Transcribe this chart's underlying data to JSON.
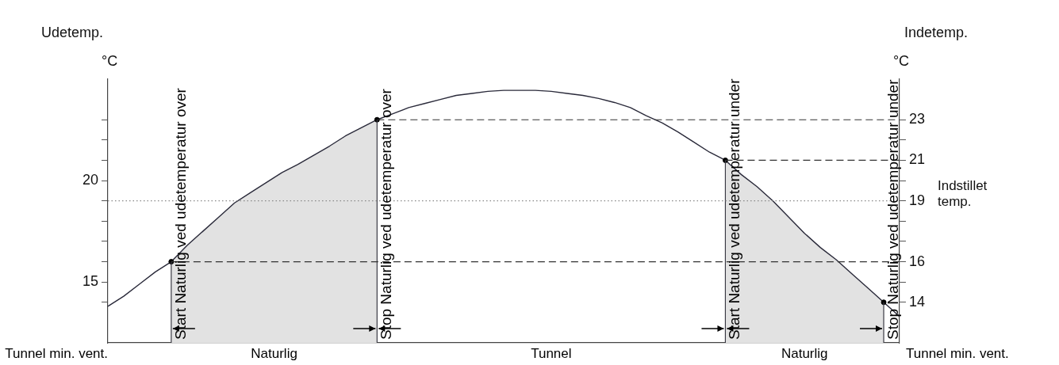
{
  "chart_data": {
    "type": "line",
    "ylabel": "Udetemp.\n°C",
    "y2label": "Indetemp.\n°C",
    "categories": [
      null,
      null,
      null,
      null,
      null,
      null,
      null,
      null,
      null,
      null,
      null,
      null,
      null,
      null,
      null,
      null,
      null,
      null,
      null,
      null,
      null,
      null,
      null,
      null,
      null,
      null,
      null,
      null,
      null,
      null,
      null,
      null,
      null,
      null,
      null,
      null,
      null,
      null,
      null,
      null,
      null,
      null,
      null,
      null,
      null,
      null,
      null,
      null,
      null,
      null,
      null
    ],
    "series": [
      {
        "type": "area",
        "color": "#e2e2e2",
        "values": [
          null,
          null,
          null,
          null,
          16.0,
          16.8,
          17.5,
          18.2,
          18.9,
          19.4,
          19.9,
          20.4,
          20.8,
          21.25,
          21.7,
          22.2,
          22.6,
          23.0,
          null,
          null,
          null,
          null,
          null,
          null,
          null,
          null,
          null,
          null,
          null,
          null,
          null,
          null,
          null,
          null,
          null,
          null,
          null,
          null,
          null,
          null,
          null,
          null,
          null,
          null,
          null,
          null,
          null,
          null,
          null,
          null,
          null
        ]
      },
      {
        "type": "area",
        "color": "#e2e2e2",
        "values": [
          null,
          null,
          null,
          null,
          null,
          null,
          null,
          null,
          null,
          null,
          null,
          null,
          null,
          null,
          null,
          null,
          null,
          null,
          null,
          null,
          null,
          null,
          null,
          null,
          null,
          null,
          null,
          null,
          null,
          null,
          null,
          null,
          null,
          null,
          null,
          null,
          null,
          null,
          null,
          21.0,
          20.3,
          19.7,
          19.0,
          18.2,
          17.4,
          16.7,
          16.1,
          15.4,
          14.7,
          14.0,
          null
        ]
      },
      {
        "type": "line",
        "color": "#2a2a3a",
        "values": [
          13.8,
          14.3,
          14.9,
          15.5,
          16.0,
          16.8,
          17.5,
          18.2,
          18.9,
          19.4,
          19.9,
          20.4,
          20.8,
          21.25,
          21.7,
          22.2,
          22.6,
          23.0,
          23.3,
          23.6,
          23.8,
          24.0,
          24.2,
          24.3,
          24.4,
          24.45,
          24.45,
          24.45,
          24.4,
          24.3,
          24.2,
          24.05,
          23.85,
          23.6,
          23.2,
          22.85,
          22.4,
          21.9,
          21.4,
          21.0,
          20.3,
          19.7,
          19.0,
          18.2,
          17.4,
          16.7,
          16.1,
          15.4,
          14.7,
          14.0,
          13.3
        ]
      },
      {
        "type": "scatter",
        "color": "#000000",
        "marker": "circle",
        "values": [
          null,
          null,
          null,
          null,
          16.0,
          null,
          null,
          null,
          null,
          null,
          null,
          null,
          null,
          null,
          null,
          null,
          null,
          23.0,
          null,
          null,
          null,
          null,
          null,
          null,
          null,
          null,
          null,
          null,
          null,
          null,
          null,
          null,
          null,
          null,
          null,
          null,
          null,
          null,
          null,
          21.0,
          null,
          null,
          null,
          null,
          null,
          null,
          null,
          null,
          null,
          14.0,
          null
        ]
      }
    ],
    "ylim": [
      12,
      25
    ],
    "yticks": [
      {
        "value": 14,
        "label": null
      },
      15,
      {
        "value": 16,
        "label": null
      },
      {
        "value": 17,
        "label": null
      },
      {
        "value": 18,
        "label": null
      },
      {
        "value": 19,
        "label": null
      },
      20,
      {
        "value": 21,
        "label": null
      },
      {
        "value": 22,
        "label": null
      },
      {
        "value": 23,
        "label": null
      }
    ],
    "y2lim": [
      12,
      25
    ],
    "y2ticks": [
      14,
      {
        "value": 15,
        "label": null
      },
      16,
      {
        "value": 17,
        "label": null
      },
      {
        "value": 18,
        "label": null
      },
      19,
      {
        "value": 20,
        "label": null
      },
      21,
      {
        "value": 22,
        "label": null
      },
      23
    ],
    "ref_lines": [
      {
        "axis": "y2",
        "value": 23,
        "color": "#333333",
        "line_style": "dashed"
      },
      {
        "axis": "y2",
        "value": 21,
        "color": "#333333",
        "line_style": "dashed"
      },
      {
        "axis": "y2",
        "value": 19,
        "color": "#888888",
        "line_style": "dotted",
        "label": "Indstillet temp."
      },
      {
        "axis": "y2",
        "value": 16,
        "color": "#333333",
        "line_style": "dashed"
      }
    ],
    "annotations": [
      "Start Naturlig ved udetemperatur over",
      "Stop Naturlig ved udetemperatur over",
      "Start Naturlig ved udetemperatur under",
      "Stop Naturlig ved udetemperatur under",
      "Tunnel min. vent.",
      "Naturlig",
      "Tunnel",
      "Naturlig",
      "Tunnel min. vent."
    ],
    "grid": false,
    "legend": false
  }
}
